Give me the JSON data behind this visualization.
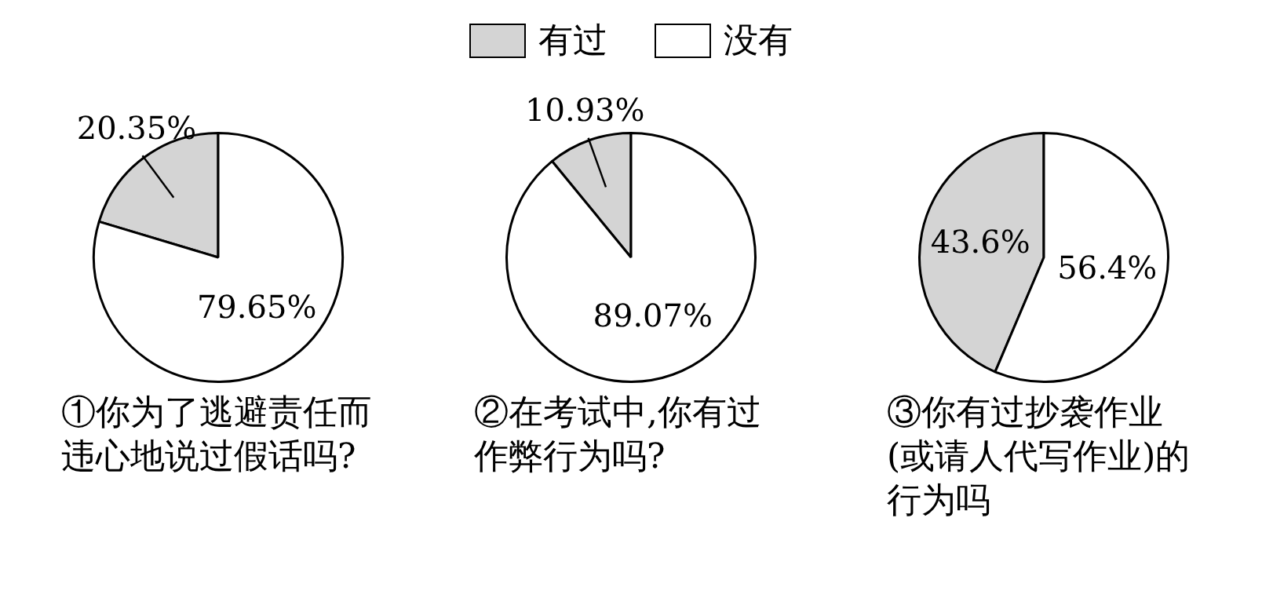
{
  "chart_data": [
    {
      "type": "pie",
      "title": "①你为了逃避责任而违心地说过假话吗?",
      "categories": [
        "有过",
        "没有"
      ],
      "values": [
        20.35,
        79.65
      ],
      "colors": [
        "#d4d4d4",
        "#ffffff"
      ],
      "data_labels": true,
      "value_labels": [
        "20.35%",
        "79.65%"
      ],
      "legend": "top"
    },
    {
      "type": "pie",
      "title": "②在考试中,你有过作弊行为吗?",
      "categories": [
        null,
        null
      ],
      "values": [
        10.93,
        89.07
      ],
      "colors": [
        "#d4d4d4",
        "#ffffff"
      ],
      "data_labels": true,
      "value_labels": [
        "10.93%",
        "89.07%"
      ]
    },
    {
      "type": "pie",
      "title": "③你有过抄袭作业(或请人代写作业)的行为吗",
      "categories": [
        null,
        null
      ],
      "values": [
        43.6,
        56.4
      ],
      "colors": [
        "#d4d4d4",
        "#ffffff"
      ],
      "data_labels": true,
      "value_labels": [
        "43.6%",
        "56.4%"
      ]
    }
  ]
}
